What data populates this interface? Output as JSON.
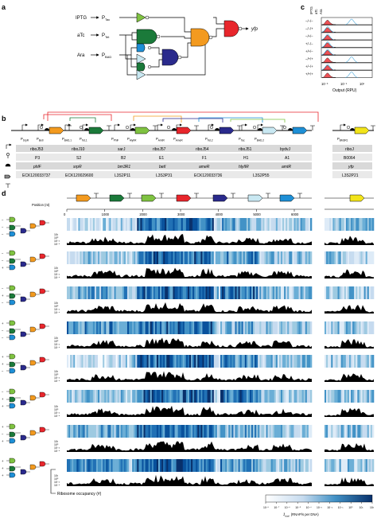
{
  "panels": {
    "a": "a",
    "b": "b",
    "c": "c",
    "d": "d"
  },
  "panel_a": {
    "inputs": [
      "IPTG",
      "aTc",
      "Ara"
    ],
    "promoters": [
      {
        "main": "P",
        "sub": "Tac"
      },
      {
        "main": "P",
        "sub": "Tet"
      },
      {
        "main": "P",
        "sub": "BAD"
      }
    ],
    "output": "yfp"
  },
  "panel_c": {
    "headers": [
      "IPTG",
      "aTc",
      "Ara"
    ],
    "conditions": [
      "−/−/−",
      "−/−/+",
      "−/+/−",
      "+/−/−",
      "+/+/−",
      "−/+/+",
      "+/−/+",
      "+/+/+"
    ],
    "ticks": [
      "10⁻³",
      "10⁻¹",
      "10¹"
    ],
    "xlabel": "Output (RPU)"
  },
  "panel_b": {
    "promoters": [
      {
        "main": "P",
        "sub": "SrpR"
      },
      {
        "main": "P",
        "sub": "BetI"
      },
      {
        "main": "P",
        "sub": "BAD,1"
      },
      {
        "main": "P",
        "sub": "Tet,1"
      },
      {
        "main": "P",
        "sub": "PhlF"
      },
      {
        "main": "P",
        "sub": "HlyIIR"
      },
      {
        "main": "P",
        "sub": "AmtR"
      },
      {
        "main": "P",
        "sub": "AmeR"
      },
      {
        "main": "P",
        "sub": "Tet,2"
      },
      {
        "main": "P",
        "sub": "Tac"
      },
      {
        "main": "P",
        "sub": "BAD,2"
      }
    ],
    "right_promoter": {
      "main": "P",
      "sub": "BM3R1"
    },
    "rows": [
      [
        "riboJ53",
        "riboJ10",
        "sarJ",
        "riboJ57",
        "riboJ54",
        "riboJ51",
        "bydvJ"
      ],
      [
        "P3",
        "S2",
        "B2",
        "E1",
        "F1",
        "H1",
        "A1"
      ],
      [
        "phlF",
        "srpR",
        "bm3R1",
        "betI",
        "ameR",
        "hlyIIR",
        "amtR"
      ],
      [
        "ECK120033737",
        "ECK120029600",
        "L3S2P11",
        "L3S3P31",
        "ECK120033736",
        "L3S2P55"
      ]
    ],
    "right_rows": [
      "riboJ",
      "B0064",
      "yfp",
      "L3S2P21"
    ]
  },
  "panel_d": {
    "position_label": "Position (nt)",
    "ticks": [
      "0",
      "1000",
      "2000",
      "3000",
      "4000",
      "5000",
      "6000"
    ],
    "ylabels": [
      "10²",
      "10⁰",
      "10⁻²",
      "10⁻⁴"
    ],
    "conditions": [
      "−/−/−",
      "−/−/+",
      "−/+/−",
      "+/−/−",
      "+/+/−",
      "−/+/+",
      "+/−/+",
      "+/+/+"
    ],
    "annotation": "Ribosome occupancy (#)",
    "colorbar_ticks": [
      "10⁻⁸",
      "10⁻⁷",
      "10⁻⁶",
      "10⁻⁵",
      "10⁻⁴",
      "10⁻³",
      "10⁻²",
      "10⁻¹",
      "10⁰",
      "10¹",
      "10²"
    ],
    "colorbar_label": "(RNAP/s per DNA)",
    "colorbar_symbol": "J̄",
    "colorbar_sub": "dual"
  },
  "colors": {
    "accent_blue": "#1f5fa8",
    "ribosome": "#000000",
    "green_gate": "#7fc241",
    "dark_green": "#1b7a3a",
    "blue_gate": "#1e8fd6",
    "navy_gate": "#2a2a8c",
    "orange_gate": "#f39a1f",
    "red_gate": "#e8262c",
    "yellow": "#f2e41a"
  }
}
